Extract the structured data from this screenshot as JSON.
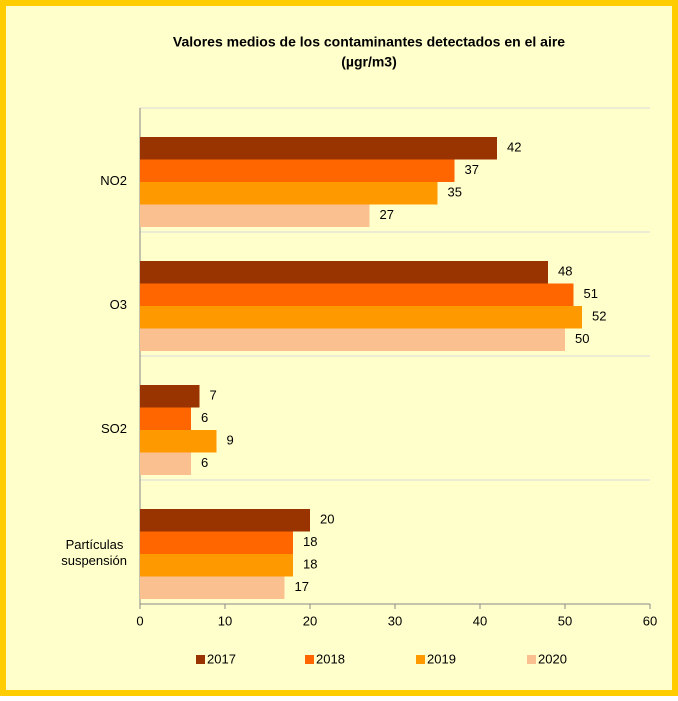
{
  "chart_data": {
    "type": "hbar",
    "title": "Valores medios de los contaminantes detectados en el aire",
    "subtitle": "(µgr/m3)",
    "categories": [
      "NO2",
      "O3",
      "SO2",
      "Partículas suspensión"
    ],
    "series": [
      {
        "name": "2017",
        "color": "#993300",
        "values": [
          42,
          48,
          7,
          20
        ]
      },
      {
        "name": "2018",
        "color": "#ff6600",
        "values": [
          37,
          51,
          6,
          18
        ]
      },
      {
        "name": "2019",
        "color": "#ff9900",
        "values": [
          35,
          52,
          9,
          18
        ]
      },
      {
        "name": "2020",
        "color": "#fac090",
        "values": [
          27,
          50,
          6,
          17
        ]
      }
    ],
    "xlim": [
      0,
      60
    ],
    "xticks": [
      0,
      10,
      20,
      30,
      40,
      50,
      60
    ],
    "legend": "bottom"
  }
}
